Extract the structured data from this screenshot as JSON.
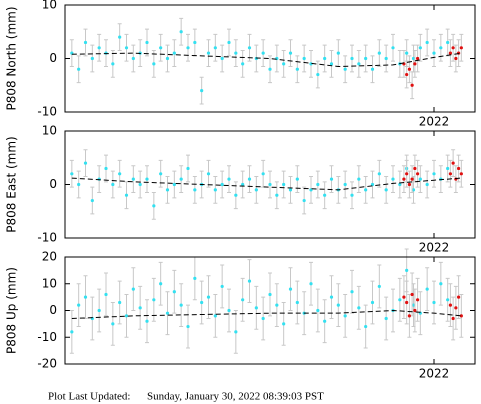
{
  "chart_data": [
    {
      "type": "scatter",
      "ylabel": "P808 North (mm)",
      "xlim": [
        2019.3,
        2022.3
      ],
      "xticks": [
        2022
      ],
      "ylim": [
        -10,
        10
      ],
      "yticks": [
        -10,
        0,
        10
      ],
      "series": [
        {
          "color": "#33e0f0",
          "error": 2.5,
          "x": [
            2019.35,
            2019.4,
            2019.45,
            2019.5,
            2019.55,
            2019.6,
            2019.65,
            2019.7,
            2019.75,
            2019.8,
            2019.85,
            2019.9,
            2019.95,
            2020.0,
            2020.05,
            2020.1,
            2020.15,
            2020.2,
            2020.25,
            2020.3,
            2020.35,
            2020.4,
            2020.45,
            2020.5,
            2020.55,
            2020.6,
            2020.65,
            2020.7,
            2020.75,
            2020.8,
            2020.85,
            2020.9,
            2020.95,
            2021.0,
            2021.05,
            2021.1,
            2021.15,
            2021.2,
            2021.25,
            2021.3,
            2021.35,
            2021.4,
            2021.45,
            2021.5,
            2021.55,
            2021.6,
            2021.65,
            2021.7,
            2021.75,
            2021.8,
            2021.85,
            2021.9,
            2021.95,
            2022.0,
            2022.05,
            2022.1
          ],
          "values": [
            1,
            -2,
            3,
            0,
            2,
            1,
            -1,
            4,
            2,
            0,
            1,
            3,
            -1,
            2,
            0,
            1,
            5,
            2,
            3,
            -6,
            1,
            2,
            0,
            3,
            1,
            -1,
            2,
            0,
            1,
            -2,
            0,
            -1,
            1,
            -2,
            0,
            -1,
            -3,
            0,
            -1,
            1,
            -2,
            0,
            -1,
            0,
            -2,
            1,
            0,
            2,
            -1,
            1,
            0,
            2,
            3,
            1,
            2,
            3
          ]
        },
        {
          "color": "#e01010",
          "error": 2.5,
          "x": [
            2021.78,
            2021.8,
            2021.82,
            2021.84,
            2021.86,
            2021.88,
            2022.12,
            2022.14,
            2022.16,
            2022.18,
            2022.2
          ],
          "values": [
            -1,
            -3,
            -2,
            -5,
            -1,
            0,
            1,
            2,
            0,
            1,
            2
          ]
        },
        {
          "color": "#000000",
          "dashed": true,
          "x": [
            2019.35,
            2019.8,
            2020.3,
            2020.8,
            2021.3,
            2021.7,
            2022.0,
            2022.2
          ],
          "values": [
            0.8,
            1,
            0.5,
            0,
            -1.5,
            -1.2,
            0.2,
            1
          ]
        }
      ]
    },
    {
      "type": "scatter",
      "ylabel": "P808 East (mm)",
      "xlim": [
        2019.3,
        2022.3
      ],
      "xticks": [
        2022
      ],
      "ylim": [
        -10,
        10
      ],
      "yticks": [
        -10,
        0,
        10
      ],
      "series": [
        {
          "color": "#33e0f0",
          "error": 2.5,
          "x": [
            2019.35,
            2019.4,
            2019.45,
            2019.5,
            2019.55,
            2019.6,
            2019.65,
            2019.7,
            2019.75,
            2019.8,
            2019.85,
            2019.9,
            2019.95,
            2020.0,
            2020.05,
            2020.1,
            2020.15,
            2020.2,
            2020.25,
            2020.3,
            2020.35,
            2020.4,
            2020.45,
            2020.5,
            2020.55,
            2020.6,
            2020.65,
            2020.7,
            2020.75,
            2020.8,
            2020.85,
            2020.9,
            2020.95,
            2021.0,
            2021.05,
            2021.1,
            2021.15,
            2021.2,
            2021.25,
            2021.3,
            2021.35,
            2021.4,
            2021.45,
            2021.5,
            2021.55,
            2021.6,
            2021.65,
            2021.7,
            2021.75,
            2021.8,
            2021.85,
            2021.9,
            2021.95,
            2022.0,
            2022.05,
            2022.1
          ],
          "values": [
            2,
            0,
            4,
            -3,
            1,
            3,
            0,
            2,
            -2,
            1,
            0,
            1,
            -4,
            2,
            -1,
            0,
            1,
            3,
            -1,
            0,
            2,
            -1,
            0,
            1,
            -2,
            0,
            1,
            -1,
            2,
            0,
            -2,
            0,
            -1,
            1,
            -3,
            -1,
            0,
            -2,
            1,
            -1,
            0,
            -2,
            1,
            -1,
            0,
            2,
            -1,
            1,
            0,
            3,
            -1,
            1,
            0,
            2,
            1,
            3
          ]
        },
        {
          "color": "#e01010",
          "error": 2.5,
          "x": [
            2021.78,
            2021.8,
            2021.82,
            2021.84,
            2021.86,
            2021.88,
            2022.12,
            2022.14,
            2022.16,
            2022.18,
            2022.2
          ],
          "values": [
            1,
            2,
            0,
            1,
            3,
            2,
            2,
            4,
            1,
            3,
            2
          ]
        },
        {
          "color": "#000000",
          "dashed": true,
          "x": [
            2019.35,
            2019.8,
            2020.3,
            2020.8,
            2021.3,
            2021.7,
            2022.0,
            2022.2
          ],
          "values": [
            1.2,
            0.5,
            0,
            -0.5,
            -1,
            0.2,
            0.8,
            1.2
          ]
        }
      ]
    },
    {
      "type": "scatter",
      "ylabel": "P808 Up (mm)",
      "xlim": [
        2019.3,
        2022.3
      ],
      "xticks": [
        2022
      ],
      "ylim": [
        -20,
        20
      ],
      "yticks": [
        -20,
        -10,
        0,
        10,
        20
      ],
      "series": [
        {
          "color": "#33e0f0",
          "error": 8,
          "x": [
            2019.35,
            2019.4,
            2019.45,
            2019.5,
            2019.55,
            2019.6,
            2019.65,
            2019.7,
            2019.75,
            2019.8,
            2019.85,
            2019.9,
            2019.95,
            2020.0,
            2020.05,
            2020.1,
            2020.15,
            2020.2,
            2020.25,
            2020.3,
            2020.35,
            2020.4,
            2020.45,
            2020.5,
            2020.55,
            2020.6,
            2020.65,
            2020.7,
            2020.75,
            2020.8,
            2020.85,
            2020.9,
            2020.95,
            2021.0,
            2021.05,
            2021.1,
            2021.15,
            2021.2,
            2021.25,
            2021.3,
            2021.35,
            2021.4,
            2021.45,
            2021.5,
            2021.55,
            2021.6,
            2021.65,
            2021.7,
            2021.75,
            2021.8,
            2021.85,
            2021.9,
            2021.95,
            2022.0,
            2022.05,
            2022.1
          ],
          "values": [
            -8,
            2,
            5,
            -3,
            0,
            6,
            -5,
            3,
            -2,
            8,
            1,
            -4,
            4,
            10,
            -1,
            7,
            2,
            -6,
            12,
            3,
            5,
            -2,
            9,
            0,
            -8,
            4,
            11,
            1,
            -3,
            6,
            2,
            -5,
            8,
            3,
            -1,
            10,
            0,
            -4,
            5,
            2,
            -2,
            7,
            1,
            -6,
            3,
            9,
            -3,
            0,
            4,
            15,
            2,
            -1,
            8,
            3,
            10,
            4
          ]
        },
        {
          "color": "#e01010",
          "error": 8,
          "x": [
            2021.78,
            2021.8,
            2021.82,
            2021.84,
            2021.86,
            2021.88,
            2022.12,
            2022.14,
            2022.16,
            2022.18,
            2022.2
          ],
          "values": [
            5,
            3,
            -2,
            6,
            0,
            4,
            2,
            -3,
            1,
            5,
            -2
          ]
        },
        {
          "color": "#000000",
          "dashed": true,
          "x": [
            2019.35,
            2019.8,
            2020.3,
            2020.8,
            2021.3,
            2021.7,
            2022.0,
            2022.2
          ],
          "values": [
            -3,
            -2,
            -1.5,
            -1,
            -1,
            0,
            -1,
            -2
          ]
        }
      ]
    }
  ],
  "footer": {
    "label": "Plot Last Updated:",
    "value": "Sunday, January 30, 2022 08:39:03 PST"
  }
}
